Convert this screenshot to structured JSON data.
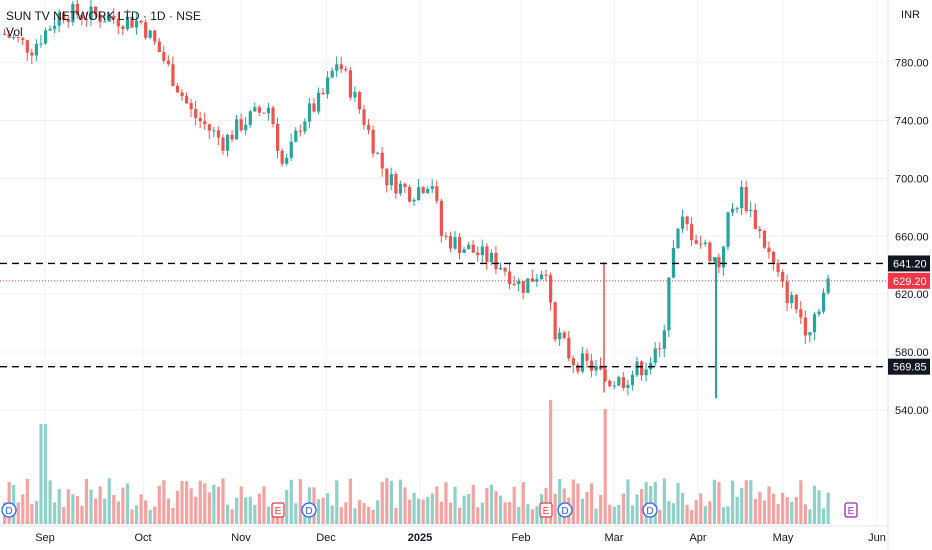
{
  "header": {
    "title": "SUN TV NETWORK LTD · 1D · NSE",
    "volume_label": "Vol",
    "currency": "INR"
  },
  "colors": {
    "up": "#26a69a",
    "down": "#ef5350",
    "up_vol": "#8fd1c9",
    "down_vol": "#f4a3a2",
    "grid": "#eef0f3",
    "text": "#131722",
    "price_tag": "#f23645",
    "level_tag": "#131722"
  },
  "chart_data": {
    "type": "candlestick",
    "grid": true,
    "y_ticks": [
      "540.00",
      "580.00",
      "620.00",
      "660.00",
      "700.00",
      "740.00",
      "780.00"
    ],
    "x_ticks": [
      "Sep",
      "Oct",
      "Nov",
      "Dec",
      "2025",
      "Feb",
      "Mar",
      "Apr",
      "May",
      "Jun"
    ],
    "levels": [
      {
        "label": "641.20",
        "value": 641.2,
        "style": "dashed"
      },
      {
        "label": "569.85",
        "value": 569.85,
        "style": "dashed"
      }
    ],
    "last_price": {
      "label": "629.20",
      "value": 629.2
    },
    "events": [
      {
        "label": "D",
        "date": "Aug 23"
      },
      {
        "label": "E",
        "date": "Nov 13"
      },
      {
        "label": "D",
        "date": "Nov 20"
      },
      {
        "label": "E",
        "date": "Feb 10"
      },
      {
        "label": "D",
        "date": "Feb 14"
      },
      {
        "label": "D",
        "date": "Mar 21"
      },
      {
        "label": "E",
        "date": "May 19"
      }
    ],
    "key_prices": [
      {
        "date": "late Aug",
        "close": 800
      },
      {
        "date": "mid Sep",
        "close": 808
      },
      {
        "date": "early Oct",
        "close": 790
      },
      {
        "date": "late Oct",
        "close": 720
      },
      {
        "date": "early Nov",
        "close": 745
      },
      {
        "date": "mid Nov",
        "close": 705
      },
      {
        "date": "early Dec",
        "close": 778
      },
      {
        "date": "end Dec",
        "close": 700
      },
      {
        "date": "mid Jan",
        "close": 650
      },
      {
        "date": "early Feb",
        "close": 628
      },
      {
        "date": "late Feb",
        "close": 575
      },
      {
        "date": "early Mar",
        "close": 555
      },
      {
        "date": "mid Mar",
        "close": 575
      },
      {
        "date": "late Mar",
        "close": 665
      },
      {
        "date": "early Apr",
        "close": 640
      },
      {
        "date": "mid Apr",
        "close": 690
      },
      {
        "date": "early May",
        "close": 600
      },
      {
        "date": "mid May",
        "close": 629.2
      }
    ]
  }
}
